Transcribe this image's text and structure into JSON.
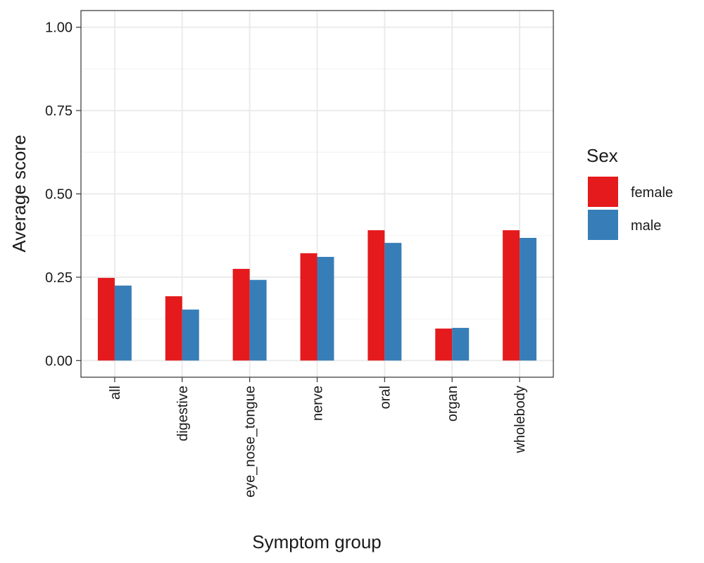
{
  "chart_data": {
    "type": "bar",
    "title": "",
    "xlabel": "Symptom group",
    "ylabel": "Average score",
    "ylim": [
      -0.05,
      1.05
    ],
    "yticks": [
      {
        "value": 0.0,
        "label": "0.00"
      },
      {
        "value": 0.25,
        "label": "0.25"
      },
      {
        "value": 0.5,
        "label": "0.50"
      },
      {
        "value": 0.75,
        "label": "0.75"
      },
      {
        "value": 1.0,
        "label": "1.00"
      }
    ],
    "grid": true,
    "categories": [
      "all",
      "digestive",
      "eye_nose_tongue",
      "nerve",
      "oral",
      "organ",
      "wholebody"
    ],
    "series": [
      {
        "name": "female",
        "color": "#e41a1c",
        "values": [
          0.248,
          0.193,
          0.275,
          0.322,
          0.391,
          0.096,
          0.391
        ]
      },
      {
        "name": "male",
        "color": "#377eb8",
        "values": [
          0.225,
          0.153,
          0.242,
          0.311,
          0.353,
          0.098,
          0.368
        ]
      }
    ],
    "legend": {
      "title": "Sex",
      "position": "right"
    }
  }
}
